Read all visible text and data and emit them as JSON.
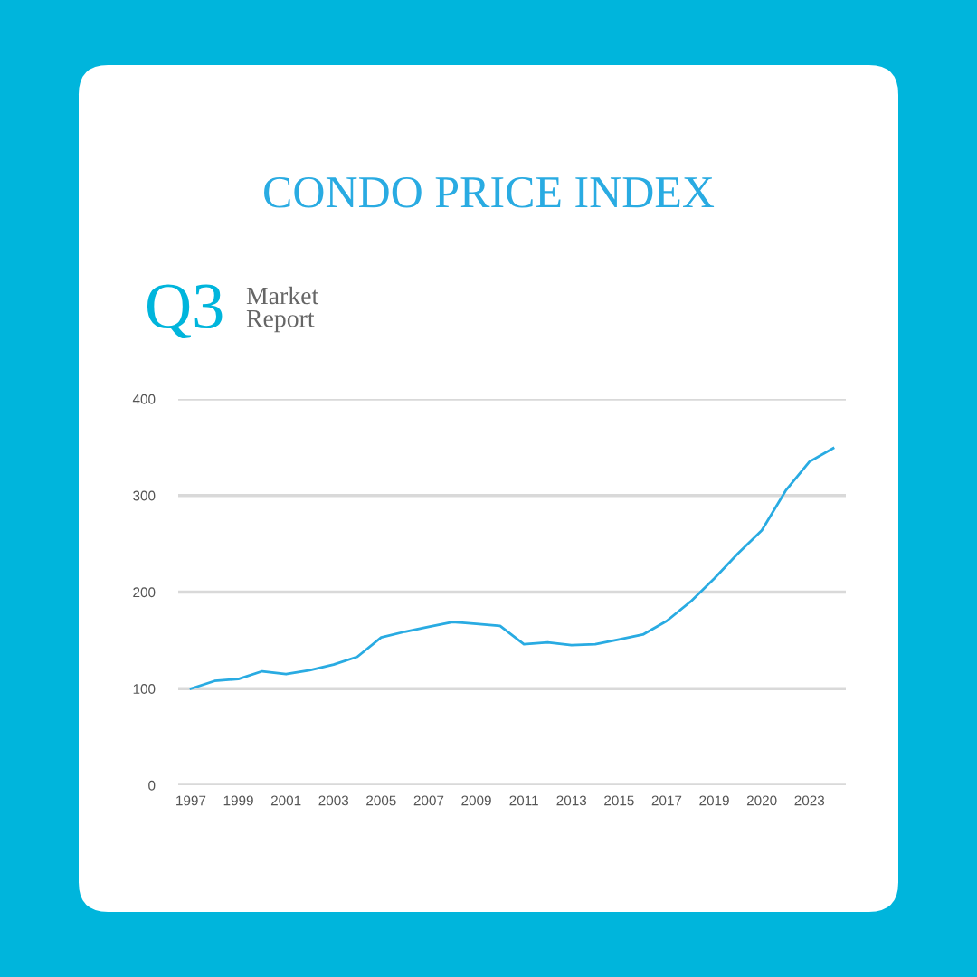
{
  "chart_data": {
    "type": "line",
    "title": "CONDO PRICE INDEX",
    "subtitle": "Q3",
    "annotations": [
      "Market Report"
    ],
    "categories": [
      "1997",
      null,
      "1999",
      null,
      "2001",
      null,
      "2003",
      null,
      "2005",
      null,
      "2007",
      null,
      "2009",
      null,
      "2011",
      null,
      "2013",
      null,
      "2015",
      null,
      "2017",
      null,
      "2019",
      null,
      "2020",
      null,
      "2023",
      null
    ],
    "series": [
      {
        "color": "#29abe2",
        "values": [
          100,
          108,
          110,
          118,
          115,
          119,
          125,
          133,
          153,
          159,
          164,
          169,
          167,
          165,
          146,
          148,
          145,
          146,
          151,
          156,
          170,
          190,
          214,
          240,
          264,
          305,
          335,
          349
        ]
      }
    ],
    "ylim": [
      0,
      400
    ],
    "yticks": [
      0,
      100,
      200,
      300,
      400
    ],
    "grid": "y",
    "legend": false,
    "marker": "none",
    "line_style": "solid"
  }
}
